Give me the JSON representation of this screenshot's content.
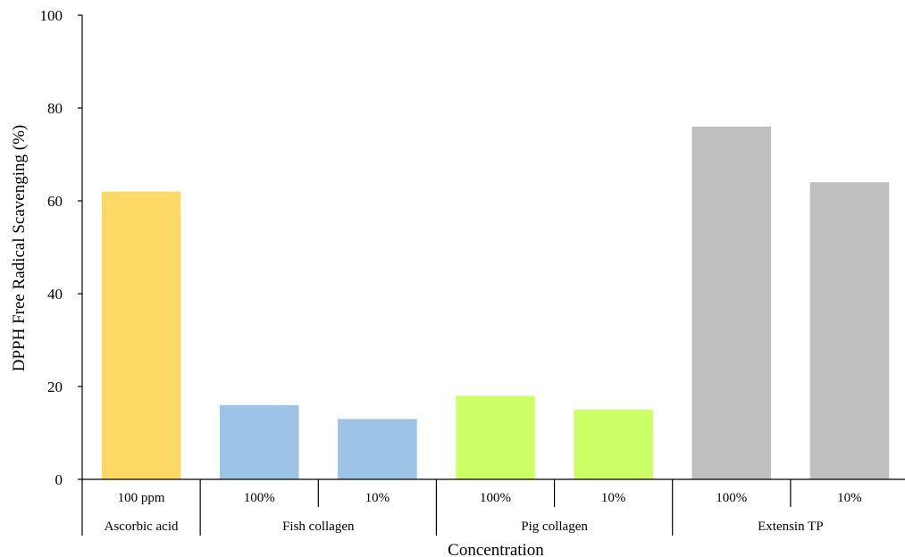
{
  "chart_data": {
    "type": "bar",
    "title": "",
    "xlabel": "Concentration",
    "ylabel": "DPPH Free Radical Scavenging (%)",
    "ylim": [
      0,
      100
    ],
    "yticks": [
      0,
      20,
      40,
      60,
      80,
      100
    ],
    "grid": false,
    "groups": [
      {
        "name": "Ascorbic acid",
        "color": "#FFD966",
        "bars": [
          {
            "label": "100 ppm",
            "value": 62
          }
        ]
      },
      {
        "name": "Fish collagen",
        "color": "#9DC3E6",
        "bars": [
          {
            "label": "100%",
            "value": 16
          },
          {
            "label": "10%",
            "value": 13
          }
        ]
      },
      {
        "name": "Pig collagen",
        "color": "#CCFF66",
        "bars": [
          {
            "label": "100%",
            "value": 18
          },
          {
            "label": "10%",
            "value": 15
          }
        ]
      },
      {
        "name": "Extensin TP",
        "color": "#BFBFBF",
        "bars": [
          {
            "label": "100%",
            "value": 76
          },
          {
            "label": "10%",
            "value": 64
          }
        ]
      }
    ]
  }
}
